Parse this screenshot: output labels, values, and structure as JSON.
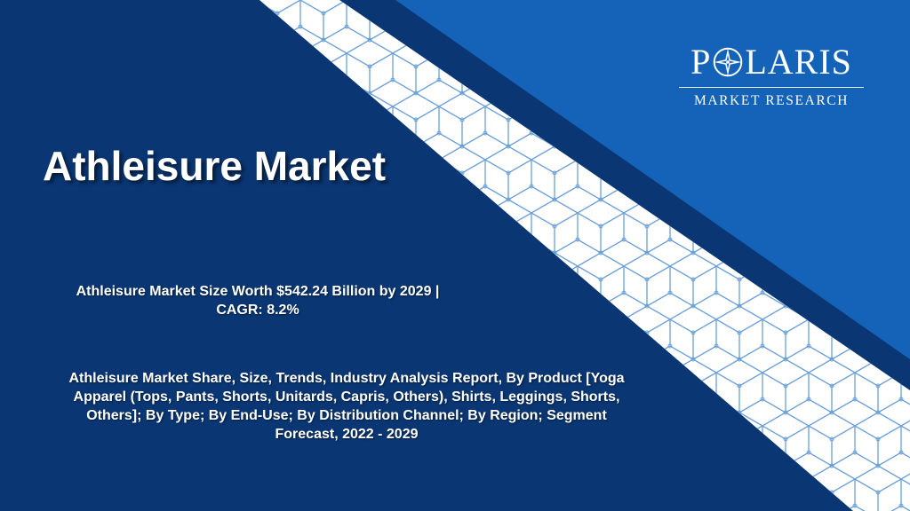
{
  "slide": {
    "title": "Athleisure Market",
    "subtitle_line1": "Athleisure Market Size Worth $542.24 Billion by 2029 |",
    "subtitle_line2": "CAGR: 8.2%",
    "description_line1": "Athleisure Market Share, Size, Trends, Industry Analysis Report, By Product [Yoga",
    "description_line2": "Apparel (Tops, Pants, Shorts, Unitards, Capris, Others), Shirts, Leggings, Shorts,",
    "description_line3": "Others]; By Type; By End-Use; By Distribution Channel; By Region; Segment",
    "description_line4": "Forecast, 2022 - 2029"
  },
  "logo": {
    "name_start": "P",
    "name_end": "LARIS",
    "tagline": "MARKET RESEARCH",
    "icon": "compass-star-icon"
  },
  "colors": {
    "navy": "#0a3774",
    "royal_blue": "#1463b8",
    "band_white": "#ffffff",
    "pattern_line": "#6a9fd8"
  }
}
